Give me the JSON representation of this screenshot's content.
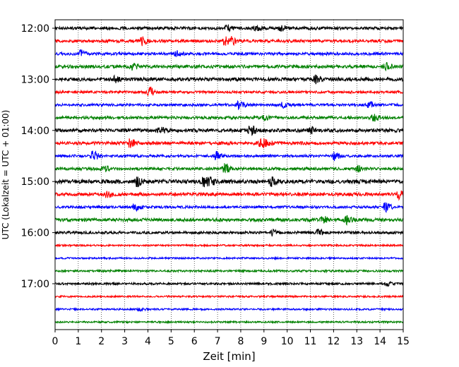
{
  "chart_data": {
    "type": "line",
    "xlabel": "Zeit  [min]",
    "ylabel": "UTC (Lokalzeit = UTC + 01:00)",
    "xlim": [
      0,
      15
    ],
    "x_ticks": [
      0,
      1,
      2,
      3,
      4,
      5,
      6,
      7,
      8,
      9,
      10,
      11,
      12,
      13,
      14,
      15
    ],
    "y_tick_labels": [
      "12:00",
      "13:00",
      "14:00",
      "15:00",
      "16:00",
      "17:00"
    ],
    "grid": "vertical dotted lines at each minute",
    "trace_interval_min": 15,
    "trace_colors": [
      "#000000",
      "#ff0000",
      "#0000ff",
      "#008000"
    ],
    "traces": [
      {
        "start": "12:00",
        "color": "#000000",
        "amplitude": 0.25,
        "events": [
          {
            "x": 7.4,
            "amp": 0.5
          },
          {
            "x": 8.6,
            "amp": 0.45
          },
          {
            "x": 9.7,
            "amp": 0.4
          }
        ]
      },
      {
        "start": "12:15",
        "color": "#ff0000",
        "amplitude": 0.25,
        "events": [
          {
            "x": 3.7,
            "amp": 0.7
          },
          {
            "x": 7.3,
            "amp": 0.6
          },
          {
            "x": 7.6,
            "amp": 0.5
          }
        ]
      },
      {
        "start": "12:30",
        "color": "#0000ff",
        "amplitude": 0.25,
        "events": [
          {
            "x": 1.1,
            "amp": 0.55
          },
          {
            "x": 5.2,
            "amp": 0.4
          }
        ]
      },
      {
        "start": "12:45",
        "color": "#008000",
        "amplitude": 0.28,
        "events": [
          {
            "x": 3.3,
            "amp": 0.5
          },
          {
            "x": 14.2,
            "amp": 0.6
          }
        ]
      },
      {
        "start": "13:00",
        "color": "#000000",
        "amplitude": 0.3,
        "events": [
          {
            "x": 2.5,
            "amp": 0.6
          },
          {
            "x": 11.2,
            "amp": 0.7
          }
        ]
      },
      {
        "start": "13:15",
        "color": "#ff0000",
        "amplitude": 0.22,
        "events": [
          {
            "x": 4.0,
            "amp": 0.9
          }
        ]
      },
      {
        "start": "13:30",
        "color": "#0000ff",
        "amplitude": 0.22,
        "events": [
          {
            "x": 7.9,
            "amp": 0.8
          },
          {
            "x": 9.8,
            "amp": 0.4
          },
          {
            "x": 13.5,
            "amp": 0.45
          }
        ]
      },
      {
        "start": "13:45",
        "color": "#008000",
        "amplitude": 0.25,
        "events": [
          {
            "x": 13.7,
            "amp": 0.5
          },
          {
            "x": 9.0,
            "amp": 0.35
          }
        ]
      },
      {
        "start": "14:00",
        "color": "#000000",
        "amplitude": 0.3,
        "events": [
          {
            "x": 4.5,
            "amp": 0.5
          },
          {
            "x": 8.4,
            "amp": 0.75
          },
          {
            "x": 11.0,
            "amp": 0.5
          }
        ]
      },
      {
        "start": "14:15",
        "color": "#ff0000",
        "amplitude": 0.28,
        "events": [
          {
            "x": 3.2,
            "amp": 0.75
          },
          {
            "x": 8.8,
            "amp": 0.7
          },
          {
            "x": 9.0,
            "amp": 0.6
          }
        ]
      },
      {
        "start": "14:30",
        "color": "#0000ff",
        "amplitude": 0.22,
        "events": [
          {
            "x": 1.6,
            "amp": 0.8
          },
          {
            "x": 6.9,
            "amp": 0.7
          },
          {
            "x": 12.0,
            "amp": 0.75
          }
        ]
      },
      {
        "start": "14:45",
        "color": "#008000",
        "amplitude": 0.25,
        "events": [
          {
            "x": 2.1,
            "amp": 0.5
          },
          {
            "x": 7.3,
            "amp": 0.85
          },
          {
            "x": 13.0,
            "amp": 0.45
          }
        ]
      },
      {
        "start": "15:00",
        "color": "#000000",
        "amplitude": 0.35,
        "events": [
          {
            "x": 3.5,
            "amp": 0.65
          },
          {
            "x": 6.4,
            "amp": 1.0
          },
          {
            "x": 6.6,
            "amp": 0.9
          },
          {
            "x": 9.3,
            "amp": 0.6
          }
        ]
      },
      {
        "start": "15:15",
        "color": "#ff0000",
        "amplitude": 0.28,
        "events": [
          {
            "x": 2.2,
            "amp": 0.5
          },
          {
            "x": 14.8,
            "amp": 0.75
          }
        ]
      },
      {
        "start": "15:30",
        "color": "#0000ff",
        "amplitude": 0.22,
        "events": [
          {
            "x": 3.4,
            "amp": 0.55
          },
          {
            "x": 14.2,
            "amp": 0.8
          }
        ]
      },
      {
        "start": "15:45",
        "color": "#008000",
        "amplitude": 0.28,
        "events": [
          {
            "x": 11.5,
            "amp": 0.55
          },
          {
            "x": 12.5,
            "amp": 0.75
          }
        ]
      },
      {
        "start": "16:00",
        "color": "#000000",
        "amplitude": 0.22,
        "events": [
          {
            "x": 9.3,
            "amp": 0.5
          },
          {
            "x": 11.3,
            "amp": 0.5
          }
        ]
      },
      {
        "start": "16:15",
        "color": "#ff0000",
        "amplitude": 0.15,
        "events": []
      },
      {
        "start": "16:30",
        "color": "#0000ff",
        "amplitude": 0.15,
        "events": []
      },
      {
        "start": "16:45",
        "color": "#008000",
        "amplitude": 0.18,
        "events": []
      },
      {
        "start": "17:00",
        "color": "#000000",
        "amplitude": 0.18,
        "events": [
          {
            "x": 14.3,
            "amp": 0.3
          }
        ]
      },
      {
        "start": "17:15",
        "color": "#ff0000",
        "amplitude": 0.15,
        "events": []
      },
      {
        "start": "17:30",
        "color": "#0000ff",
        "amplitude": 0.15,
        "events": [
          {
            "x": 3.6,
            "amp": 0.3
          }
        ]
      },
      {
        "start": "17:45",
        "color": "#008000",
        "amplitude": 0.15,
        "events": []
      }
    ]
  }
}
